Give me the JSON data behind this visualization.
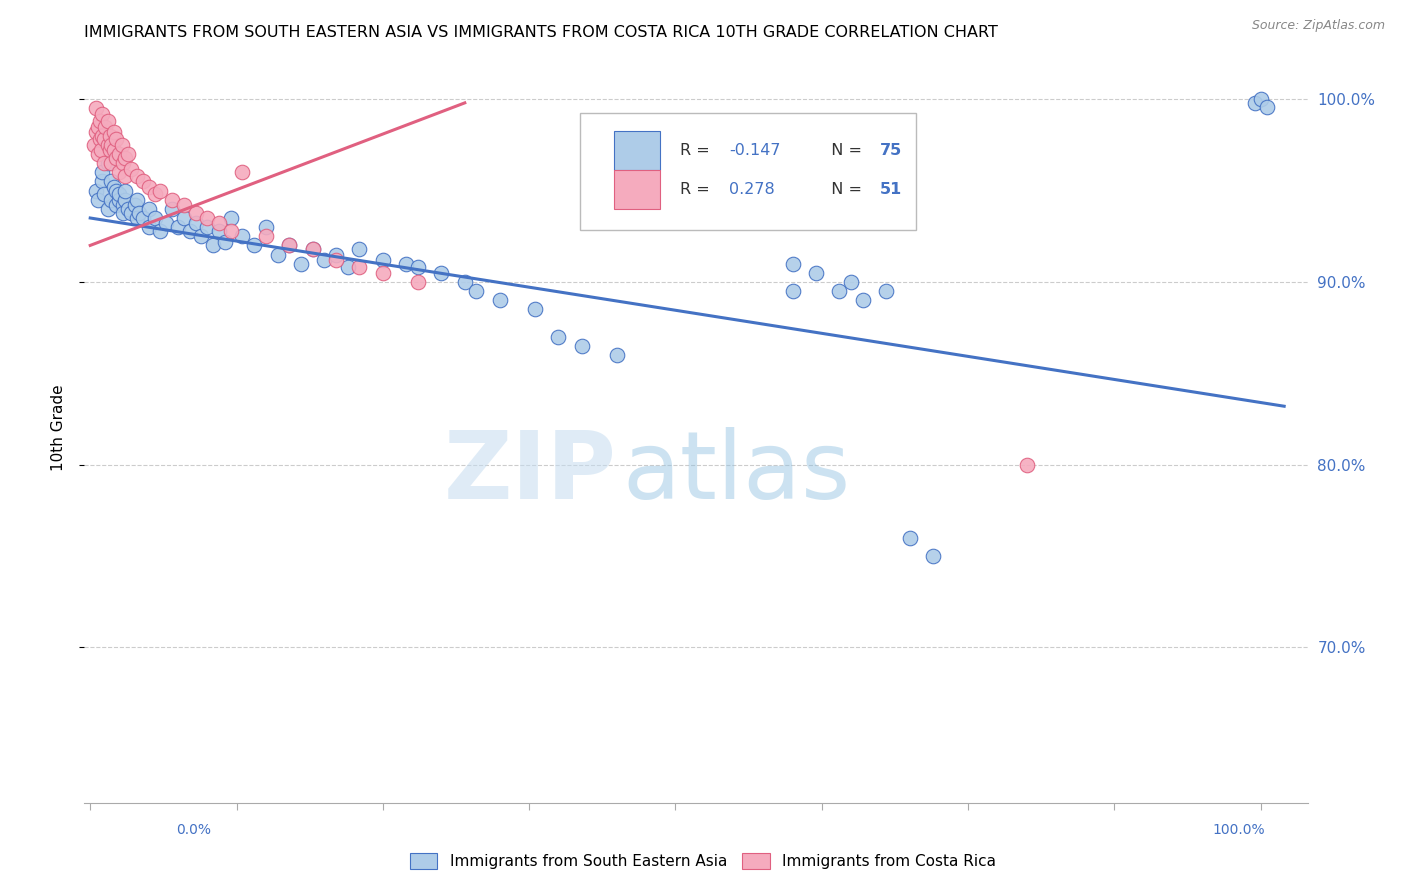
{
  "title": "IMMIGRANTS FROM SOUTH EASTERN ASIA VS IMMIGRANTS FROM COSTA RICA 10TH GRADE CORRELATION CHART",
  "source": "Source: ZipAtlas.com",
  "ylabel": "10th Grade",
  "legend_R_blue": "-0.147",
  "legend_N_blue": "75",
  "legend_R_pink": "0.278",
  "legend_N_pink": "51",
  "blue_color": "#AECCE8",
  "pink_color": "#F5ABBE",
  "line_blue": "#4472C4",
  "line_pink": "#E06080",
  "watermark_color": "#D0E4F5",
  "xlim": [
    -0.005,
    1.04
  ],
  "ylim": [
    0.615,
    1.025
  ],
  "ytick_vals": [
    0.7,
    0.8,
    0.9,
    1.0
  ],
  "ytick_labels": [
    "70.0%",
    "80.0%",
    "90.0%",
    "100.0%"
  ],
  "xtick_vals": [
    0.0,
    0.125,
    0.25,
    0.375,
    0.5,
    0.625,
    0.75,
    0.875,
    1.0
  ],
  "blue_line_x": [
    0.0,
    1.02
  ],
  "blue_line_y": [
    0.935,
    0.832
  ],
  "pink_line_x": [
    0.0,
    0.32
  ],
  "pink_line_y": [
    0.92,
    0.998
  ],
  "blue_x": [
    0.005,
    0.007,
    0.01,
    0.01,
    0.012,
    0.015,
    0.015,
    0.018,
    0.018,
    0.02,
    0.022,
    0.022,
    0.025,
    0.025,
    0.028,
    0.028,
    0.03,
    0.03,
    0.032,
    0.035,
    0.038,
    0.04,
    0.04,
    0.042,
    0.045,
    0.05,
    0.05,
    0.055,
    0.06,
    0.065,
    0.07,
    0.075,
    0.08,
    0.085,
    0.09,
    0.095,
    0.1,
    0.105,
    0.11,
    0.115,
    0.12,
    0.13,
    0.14,
    0.15,
    0.16,
    0.17,
    0.18,
    0.19,
    0.2,
    0.21,
    0.22,
    0.23,
    0.25,
    0.27,
    0.28,
    0.3,
    0.32,
    0.33,
    0.35,
    0.38,
    0.4,
    0.42,
    0.45,
    0.6,
    0.6,
    0.62,
    0.64,
    0.65,
    0.66,
    0.68,
    0.7,
    0.72,
    0.995,
    1.0,
    1.005
  ],
  "blue_y": [
    0.95,
    0.945,
    0.955,
    0.96,
    0.948,
    0.94,
    0.965,
    0.945,
    0.955,
    0.952,
    0.942,
    0.95,
    0.945,
    0.948,
    0.942,
    0.938,
    0.945,
    0.95,
    0.94,
    0.938,
    0.942,
    0.935,
    0.945,
    0.938,
    0.935,
    0.93,
    0.94,
    0.935,
    0.928,
    0.932,
    0.94,
    0.93,
    0.935,
    0.928,
    0.932,
    0.925,
    0.93,
    0.92,
    0.928,
    0.922,
    0.935,
    0.925,
    0.92,
    0.93,
    0.915,
    0.92,
    0.91,
    0.918,
    0.912,
    0.915,
    0.908,
    0.918,
    0.912,
    0.91,
    0.908,
    0.905,
    0.9,
    0.895,
    0.89,
    0.885,
    0.87,
    0.865,
    0.86,
    0.895,
    0.91,
    0.905,
    0.895,
    0.9,
    0.89,
    0.895,
    0.76,
    0.75,
    0.998,
    1.0,
    0.996
  ],
  "pink_x": [
    0.003,
    0.005,
    0.005,
    0.007,
    0.007,
    0.008,
    0.008,
    0.009,
    0.01,
    0.01,
    0.012,
    0.012,
    0.013,
    0.015,
    0.015,
    0.017,
    0.017,
    0.018,
    0.018,
    0.02,
    0.02,
    0.022,
    0.022,
    0.025,
    0.025,
    0.027,
    0.028,
    0.03,
    0.03,
    0.032,
    0.035,
    0.04,
    0.045,
    0.05,
    0.055,
    0.06,
    0.07,
    0.08,
    0.09,
    0.1,
    0.11,
    0.12,
    0.13,
    0.15,
    0.17,
    0.19,
    0.21,
    0.23,
    0.25,
    0.28,
    0.8
  ],
  "pink_y": [
    0.975,
    0.982,
    0.995,
    0.985,
    0.97,
    0.978,
    0.988,
    0.972,
    0.98,
    0.992,
    0.978,
    0.965,
    0.985,
    0.975,
    0.988,
    0.972,
    0.98,
    0.965,
    0.975,
    0.972,
    0.982,
    0.968,
    0.978,
    0.97,
    0.96,
    0.975,
    0.965,
    0.968,
    0.958,
    0.97,
    0.962,
    0.958,
    0.955,
    0.952,
    0.948,
    0.95,
    0.945,
    0.942,
    0.938,
    0.935,
    0.932,
    0.928,
    0.96,
    0.925,
    0.92,
    0.918,
    0.912,
    0.908,
    0.905,
    0.9,
    0.8
  ]
}
